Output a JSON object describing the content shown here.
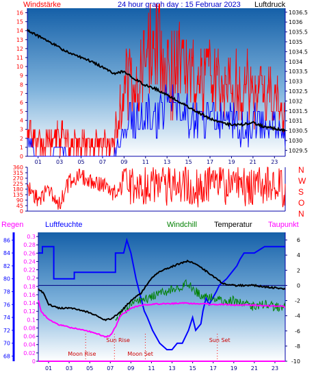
{
  "title": "24 hour graph day : 15 Februar 2023",
  "colors": {
    "red": "#ff0000",
    "blue": "#0000ff",
    "black": "#000000",
    "green": "#008000",
    "magenta": "#ff00ff",
    "bg_top": "#1560a8",
    "bg_bottom": "#ffffff",
    "tick_blue": "#000080"
  },
  "chart_data": [
    {
      "type": "line",
      "title": "24 hour graph day : 15 Februar 2023",
      "left_axis_label": "Windstärke",
      "right_axis_label": "Luftdruck",
      "x_ticks": [
        "01",
        "03",
        "05",
        "07",
        "09",
        "11",
        "13",
        "15",
        "17",
        "19",
        "21",
        "23"
      ],
      "x_range_hours": [
        0,
        24
      ],
      "left_ticks": [
        "0",
        "1",
        "2",
        "3",
        "4",
        "5",
        "6",
        "7",
        "8",
        "9",
        "10",
        "11",
        "12",
        "13",
        "14",
        "15",
        "16"
      ],
      "right_ticks": [
        "1029.5",
        "1030",
        "1030.5",
        "1031",
        "1031.5",
        "1032",
        "1032.5",
        "1033",
        "1033.5",
        "1034",
        "1034.5",
        "1035",
        "1035.5",
        "1036",
        "1036.5"
      ],
      "left_range": [
        0,
        16.5
      ],
      "right_range": [
        1029.2,
        1036.7
      ],
      "series": [
        {
          "key": "pressure",
          "axis": "right",
          "x": [
            0,
            1,
            2,
            3,
            4,
            5,
            6,
            7,
            8,
            9,
            10,
            11,
            12,
            13,
            14,
            15,
            16,
            17,
            18,
            19,
            20,
            21,
            22,
            23,
            24
          ],
          "values": [
            1035.6,
            1035.3,
            1035.0,
            1034.7,
            1034.4,
            1034.2,
            1034.0,
            1033.7,
            1033.4,
            1033.5,
            1033.1,
            1032.8,
            1032.6,
            1032.3,
            1032.0,
            1031.7,
            1031.4,
            1031.1,
            1030.9,
            1030.8,
            1030.8,
            1030.9,
            1030.7,
            1030.6,
            1030.5
          ]
        },
        {
          "key": "gust",
          "axis": "left",
          "x": [
            0,
            1,
            2,
            3,
            4,
            5,
            6,
            7,
            8,
            9,
            10,
            11,
            12,
            13,
            14,
            15,
            16,
            17,
            18,
            19,
            20,
            21,
            22,
            23,
            24
          ],
          "values": [
            4,
            2,
            2,
            3,
            2,
            2,
            2,
            2,
            2,
            8,
            9,
            10,
            15,
            10,
            11,
            10,
            9,
            9,
            8,
            9,
            8,
            8,
            7,
            7,
            5
          ]
        },
        {
          "key": "wind",
          "axis": "left",
          "x": [
            0,
            1,
            2,
            3,
            4,
            5,
            6,
            7,
            8,
            9,
            10,
            11,
            12,
            13,
            14,
            15,
            16,
            17,
            18,
            19,
            20,
            21,
            22,
            23,
            24
          ],
          "values": [
            2,
            0,
            0,
            1,
            0,
            0,
            0,
            0,
            0,
            3,
            4,
            5,
            4,
            5,
            5,
            4,
            4,
            4,
            4,
            4,
            3,
            4,
            3,
            3,
            2
          ]
        }
      ]
    },
    {
      "type": "scatter",
      "title": "",
      "right_axis_label": [
        "N",
        "W",
        "S",
        "O",
        "N"
      ],
      "left_ticks": [
        "0",
        "45",
        "90",
        "135",
        "180",
        "225",
        "270",
        "315",
        "360"
      ],
      "y_range": [
        0,
        360
      ],
      "x_range_hours": [
        0,
        24
      ],
      "series": [
        {
          "key": "direction",
          "x": [
            0,
            1,
            2,
            3,
            4,
            5,
            6,
            7,
            8,
            9,
            10,
            11,
            12,
            13,
            14,
            15,
            16,
            17,
            18,
            19,
            20,
            21,
            22,
            23,
            24
          ],
          "values": [
            200,
            100,
            180,
            60,
            260,
            280,
            250,
            220,
            150,
            200,
            180,
            220,
            240,
            200,
            230,
            210,
            190,
            250,
            220,
            200,
            210,
            180,
            230,
            210,
            200
          ]
        }
      ]
    },
    {
      "type": "line",
      "title": "",
      "labels": {
        "rain": "Regen",
        "humidity": "Luftfeuchte",
        "windchill": "Windchill",
        "temperature": "Temperatur",
        "dewpoint": "Taupunkt"
      },
      "x_ticks": [
        "01",
        "03",
        "05",
        "07",
        "09",
        "11",
        "13",
        "15",
        "17",
        "19",
        "21",
        "23"
      ],
      "x_range_hours": [
        0,
        24
      ],
      "humidity_ticks": [
        "68",
        "70",
        "72",
        "74",
        "76",
        "78",
        "80",
        "82",
        "84",
        "86"
      ],
      "humidity_range": [
        67.2,
        87.2
      ],
      "rain_ticks": [
        "0",
        "0.02",
        "0.04",
        "0.06",
        "0.08",
        "0.1",
        "0.12",
        "0.14",
        "0.16",
        "0.18",
        "0.2",
        "0.22",
        "0.24",
        "0.26",
        "0.28",
        "0.3"
      ],
      "rain_range": [
        0,
        0.31
      ],
      "temp_ticks": [
        "-10",
        "-8",
        "-6",
        "-4",
        "-2",
        "0",
        "2",
        "4",
        "6"
      ],
      "temp_range": [
        -10,
        7
      ],
      "annotations": [
        {
          "text": "Moon Rise",
          "x": 4.6
        },
        {
          "text": "Sun Rise",
          "x": 7.4
        },
        {
          "text": "Moon Set",
          "x": 10.4
        },
        {
          "text": "Sun Set",
          "x": 17.4
        }
      ],
      "series": [
        {
          "key": "humidity",
          "axis": "humidity",
          "x": [
            0,
            0.4,
            0.4,
            1.5,
            1.5,
            3.5,
            3.5,
            6,
            6,
            7,
            7.5,
            7.5,
            8.3,
            8.6,
            9,
            9.5,
            10.3,
            10.6,
            11.1,
            11.8,
            12.5,
            13,
            13.5,
            14,
            14.6,
            15,
            15.3,
            15.8,
            16,
            16.3,
            16.6,
            17.3,
            17.6,
            18.3,
            18.8,
            19.3,
            19.6,
            20,
            21,
            22,
            22.5,
            23,
            24
          ],
          "values": [
            84,
            84,
            85,
            85,
            80,
            80,
            81,
            81,
            81,
            81,
            81,
            84,
            84,
            86,
            84,
            80,
            75,
            74,
            72,
            70,
            69,
            69,
            70,
            70,
            72,
            74,
            72,
            73,
            75,
            77,
            76,
            78,
            79,
            80,
            81,
            82,
            83,
            84,
            84,
            85,
            85,
            85,
            85
          ]
        },
        {
          "key": "temperature",
          "axis": "temp",
          "x": [
            0,
            0.5,
            1,
            2,
            3,
            4,
            5,
            6,
            6.5,
            7,
            7.5,
            8,
            9,
            10,
            11,
            12,
            13,
            14,
            14.5,
            15,
            16,
            17,
            18,
            19,
            20,
            21,
            22,
            23,
            24
          ],
          "values": [
            -0.5,
            -1.0,
            -2.5,
            -3.0,
            -3.0,
            -3.2,
            -3.6,
            -4.2,
            -4.6,
            -4.4,
            -4.0,
            -3.5,
            -2.0,
            -1.0,
            1.0,
            2.0,
            2.5,
            3.0,
            3.2,
            3.0,
            2.2,
            1.2,
            0.2,
            0,
            0,
            0,
            -0.2,
            -0.3,
            -0.5
          ]
        },
        {
          "key": "windchill",
          "axis": "temp",
          "x": [
            7.5,
            8,
            9,
            10,
            11,
            12,
            13,
            14,
            14.5,
            15,
            16,
            17,
            18,
            19,
            20,
            21,
            22,
            23,
            24
          ],
          "values": [
            -4.8,
            -3.8,
            -2.5,
            -2.0,
            -1.5,
            -1.0,
            -0.5,
            -0.3,
            0.5,
            -0.5,
            -1.5,
            -1.6,
            -2.0,
            -2.0,
            -2.5,
            -2.8,
            -2.5,
            -2.8,
            -3.0
          ]
        },
        {
          "key": "dewpoint",
          "axis": "temp",
          "x": [
            0,
            0.3,
            1,
            2,
            3,
            4,
            5,
            6,
            6.5,
            7,
            7.5,
            8,
            9,
            10,
            11,
            12,
            13,
            14,
            15,
            16,
            17,
            18,
            19,
            20,
            21,
            22,
            23,
            24
          ],
          "values": [
            -2.0,
            -3.5,
            -4.5,
            -5.2,
            -5.5,
            -5.8,
            -6.1,
            -6.5,
            -6.8,
            -6.6,
            -5.5,
            -4.0,
            -3.0,
            -2.6,
            -2.5,
            -2.4,
            -2.4,
            -2.3,
            -2.4,
            -2.4,
            -2.5,
            -2.5,
            -2.6,
            -2.6,
            -2.6,
            -2.7,
            -2.7,
            -2.8
          ]
        },
        {
          "key": "rain",
          "axis": "rain",
          "x": [
            0,
            24
          ],
          "values": [
            0,
            0
          ]
        }
      ]
    }
  ]
}
